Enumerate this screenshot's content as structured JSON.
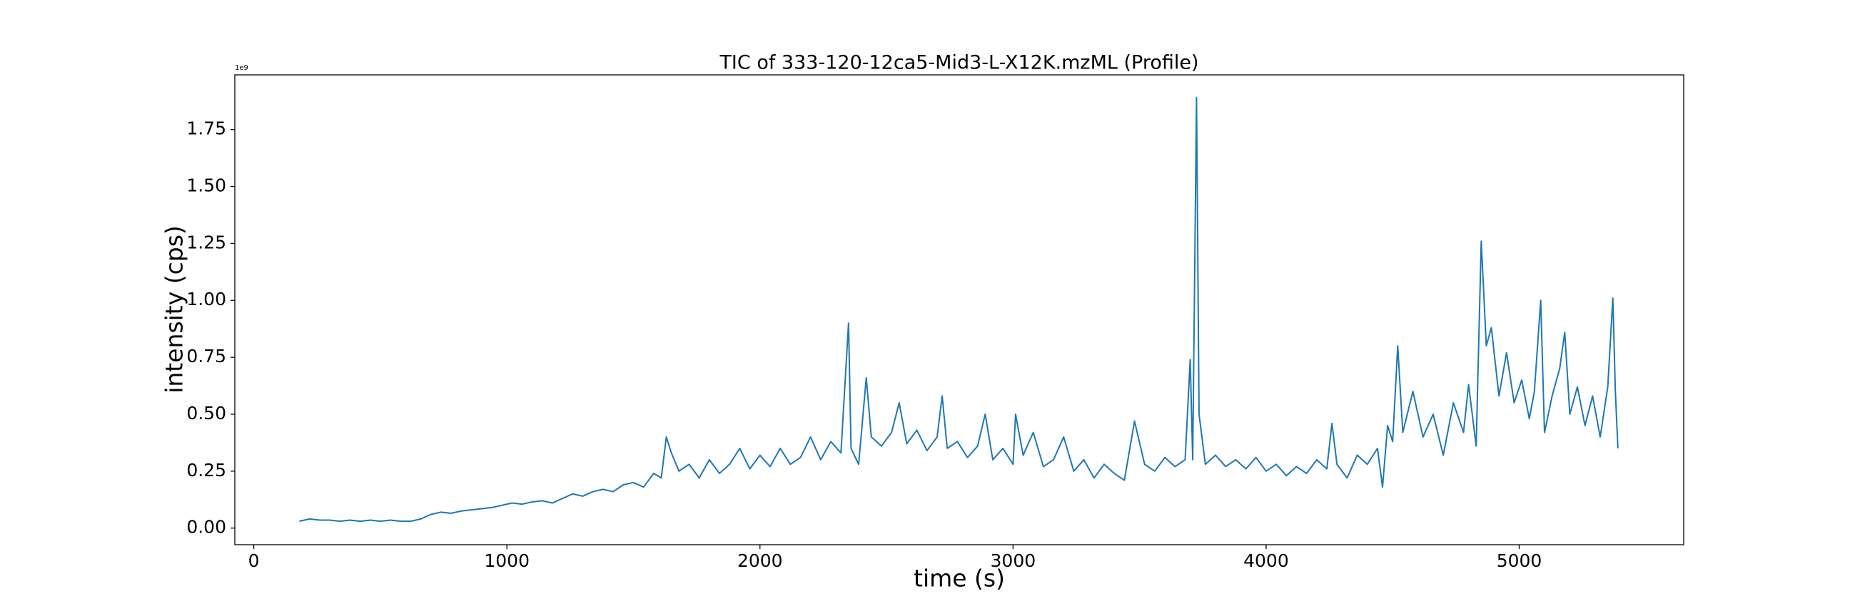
{
  "chart_data": {
    "type": "line",
    "title": "TIC of 333-120-12ca5-Mid3-L-X12K.mzML (Profile)",
    "x_label": "time (s)",
    "y_label": "intensity (cps)",
    "y_offset_label": "1e9",
    "xlim": [
      -75,
      5650
    ],
    "ylim": [
      -0.073,
      1.99
    ],
    "xticks": [
      0,
      1000,
      2000,
      3000,
      4000,
      5000
    ],
    "yticks": [
      {
        "value": 0,
        "label": "0.00"
      },
      0.25,
      {
        "value": 0.5,
        "label": "0.50"
      },
      0.75,
      {
        "value": 1,
        "label": "1.00"
      },
      1.25,
      {
        "value": 1.5,
        "label": "1.50"
      },
      1.75
    ],
    "grid": false,
    "series": [
      {
        "color": "#1f77b4",
        "x": [
          180,
          220,
          260,
          300,
          340,
          380,
          420,
          460,
          500,
          540,
          580,
          620,
          660,
          700,
          740,
          780,
          820,
          860,
          900,
          940,
          980,
          1020,
          1060,
          1100,
          1140,
          1180,
          1220,
          1260,
          1300,
          1340,
          1380,
          1420,
          1460,
          1500,
          1540,
          1580,
          1610,
          1630,
          1650,
          1680,
          1720,
          1760,
          1800,
          1840,
          1880,
          1920,
          1960,
          2000,
          2040,
          2080,
          2120,
          2160,
          2200,
          2240,
          2280,
          2320,
          2350,
          2360,
          2390,
          2420,
          2440,
          2480,
          2520,
          2550,
          2580,
          2620,
          2660,
          2700,
          2720,
          2740,
          2780,
          2820,
          2860,
          2890,
          2920,
          2960,
          3000,
          3010,
          3040,
          3080,
          3120,
          3160,
          3200,
          3240,
          3280,
          3320,
          3360,
          3400,
          3440,
          3480,
          3520,
          3560,
          3600,
          3640,
          3680,
          3700,
          3710,
          3725,
          3735,
          3760,
          3800,
          3840,
          3880,
          3920,
          3960,
          4000,
          4040,
          4080,
          4120,
          4160,
          4200,
          4240,
          4260,
          4280,
          4320,
          4360,
          4400,
          4440,
          4460,
          4480,
          4500,
          4520,
          4540,
          4580,
          4620,
          4660,
          4700,
          4740,
          4780,
          4800,
          4830,
          4850,
          4870,
          4890,
          4920,
          4950,
          4980,
          5010,
          5040,
          5060,
          5085,
          5100,
          5130,
          5160,
          5180,
          5200,
          5230,
          5260,
          5290,
          5320,
          5350,
          5370,
          5380,
          5390
        ],
        "values": [
          0.03,
          0.04,
          0.035,
          0.035,
          0.03,
          0.035,
          0.03,
          0.035,
          0.03,
          0.035,
          0.03,
          0.03,
          0.04,
          0.06,
          0.07,
          0.065,
          0.075,
          0.08,
          0.085,
          0.09,
          0.1,
          0.11,
          0.105,
          0.115,
          0.12,
          0.11,
          0.13,
          0.15,
          0.14,
          0.16,
          0.17,
          0.16,
          0.19,
          0.2,
          0.18,
          0.24,
          0.22,
          0.4,
          0.33,
          0.25,
          0.28,
          0.22,
          0.3,
          0.24,
          0.28,
          0.35,
          0.26,
          0.32,
          0.27,
          0.35,
          0.28,
          0.31,
          0.4,
          0.3,
          0.38,
          0.33,
          0.9,
          0.35,
          0.28,
          0.66,
          0.4,
          0.36,
          0.42,
          0.55,
          0.37,
          0.43,
          0.34,
          0.4,
          0.58,
          0.35,
          0.38,
          0.31,
          0.36,
          0.5,
          0.3,
          0.35,
          0.28,
          0.5,
          0.32,
          0.42,
          0.27,
          0.3,
          0.4,
          0.25,
          0.3,
          0.22,
          0.28,
          0.24,
          0.21,
          0.47,
          0.28,
          0.25,
          0.31,
          0.27,
          0.3,
          0.74,
          0.3,
          1.89,
          0.5,
          0.28,
          0.32,
          0.27,
          0.3,
          0.26,
          0.31,
          0.25,
          0.28,
          0.23,
          0.27,
          0.24,
          0.3,
          0.26,
          0.46,
          0.28,
          0.22,
          0.32,
          0.28,
          0.35,
          0.18,
          0.45,
          0.38,
          0.8,
          0.42,
          0.6,
          0.4,
          0.5,
          0.32,
          0.55,
          0.42,
          0.63,
          0.36,
          1.26,
          0.8,
          0.88,
          0.58,
          0.77,
          0.55,
          0.65,
          0.48,
          0.6,
          1.0,
          0.42,
          0.58,
          0.7,
          0.86,
          0.5,
          0.62,
          0.45,
          0.58,
          0.4,
          0.62,
          1.01,
          0.6,
          0.35
        ]
      }
    ]
  }
}
